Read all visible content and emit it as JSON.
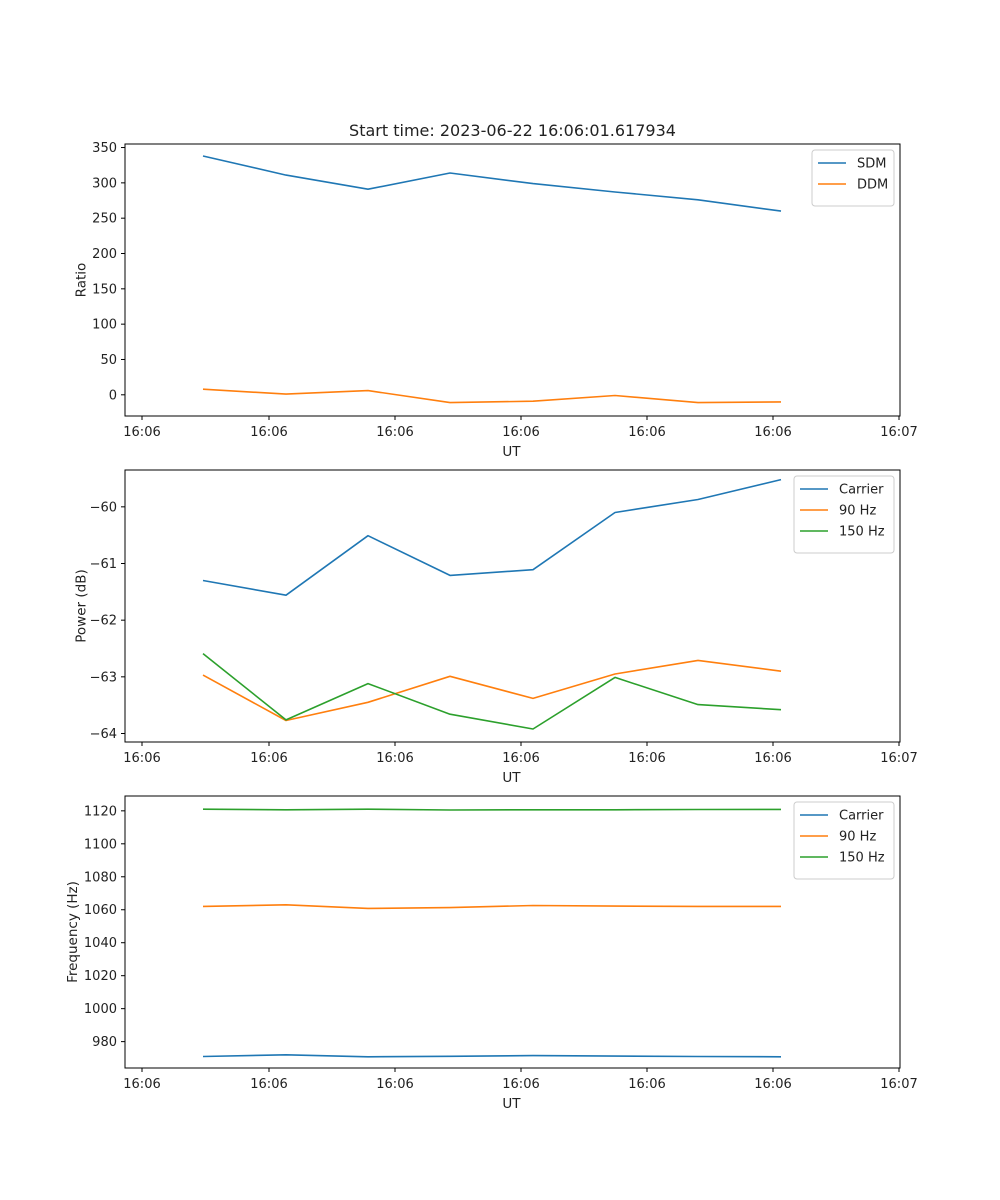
{
  "chart_data": [
    {
      "type": "line",
      "title": "Start time: 2023-06-22 16:06:01.617934",
      "xlabel": "UT",
      "ylabel": "Ratio",
      "x_tick_labels": [
        "16:06",
        "16:06",
        "16:06",
        "16:06",
        "16:06",
        "16:06",
        "16:07"
      ],
      "y_ticks": [
        0,
        50,
        100,
        150,
        200,
        250,
        300,
        350
      ],
      "ylim": [
        -30,
        355
      ],
      "grid": false,
      "legend_position": "top-right",
      "series": [
        {
          "name": "SDM",
          "color": "#1f77b4",
          "values": [
            338,
            311,
            291,
            314,
            299,
            287,
            276,
            260
          ]
        },
        {
          "name": "DDM",
          "color": "#ff7f0e",
          "values": [
            8,
            1,
            6,
            -11,
            -9,
            -1,
            -11,
            -10
          ]
        }
      ]
    },
    {
      "type": "line",
      "title": "",
      "xlabel": "UT",
      "ylabel": "Power (dB)",
      "x_tick_labels": [
        "16:06",
        "16:06",
        "16:06",
        "16:06",
        "16:06",
        "16:06",
        "16:07"
      ],
      "y_ticks": [
        -64,
        -63,
        -62,
        -61,
        -60
      ],
      "ylim": [
        -64.15,
        -59.35
      ],
      "grid": false,
      "legend_position": "top-right",
      "series": [
        {
          "name": "Carrier",
          "color": "#1f77b4",
          "values": [
            -61.3,
            -61.56,
            -60.51,
            -61.21,
            -61.11,
            -60.1,
            -59.87,
            -59.52
          ]
        },
        {
          "name": "90 Hz",
          "color": "#ff7f0e",
          "values": [
            -62.97,
            -63.77,
            -63.45,
            -62.99,
            -63.38,
            -62.95,
            -62.71,
            -62.9
          ]
        },
        {
          "name": "150 Hz",
          "color": "#2ca02c",
          "values": [
            -62.59,
            -63.76,
            -63.12,
            -63.66,
            -63.92,
            -63.01,
            -63.49,
            -63.58
          ]
        }
      ]
    },
    {
      "type": "line",
      "title": "",
      "xlabel": "UT",
      "ylabel": "Frequency (Hz)",
      "x_tick_labels": [
        "16:06",
        "16:06",
        "16:06",
        "16:06",
        "16:06",
        "16:06",
        "16:07"
      ],
      "y_ticks": [
        980,
        1000,
        1020,
        1040,
        1060,
        1080,
        1100,
        1120
      ],
      "ylim": [
        964,
        1129
      ],
      "grid": false,
      "legend_position": "top-right",
      "series": [
        {
          "name": "Carrier",
          "color": "#1f77b4",
          "values": [
            971,
            972,
            970.8,
            971.1,
            971.5,
            971.2,
            971,
            970.8
          ]
        },
        {
          "name": "90 Hz",
          "color": "#ff7f0e",
          "values": [
            1062,
            1063,
            1060.8,
            1061.3,
            1062.6,
            1062.2,
            1062,
            1062
          ]
        },
        {
          "name": "150 Hz",
          "color": "#2ca02c",
          "values": [
            1121,
            1120.6,
            1121,
            1120.5,
            1120.6,
            1120.6,
            1120.8,
            1120.9
          ]
        }
      ]
    }
  ]
}
